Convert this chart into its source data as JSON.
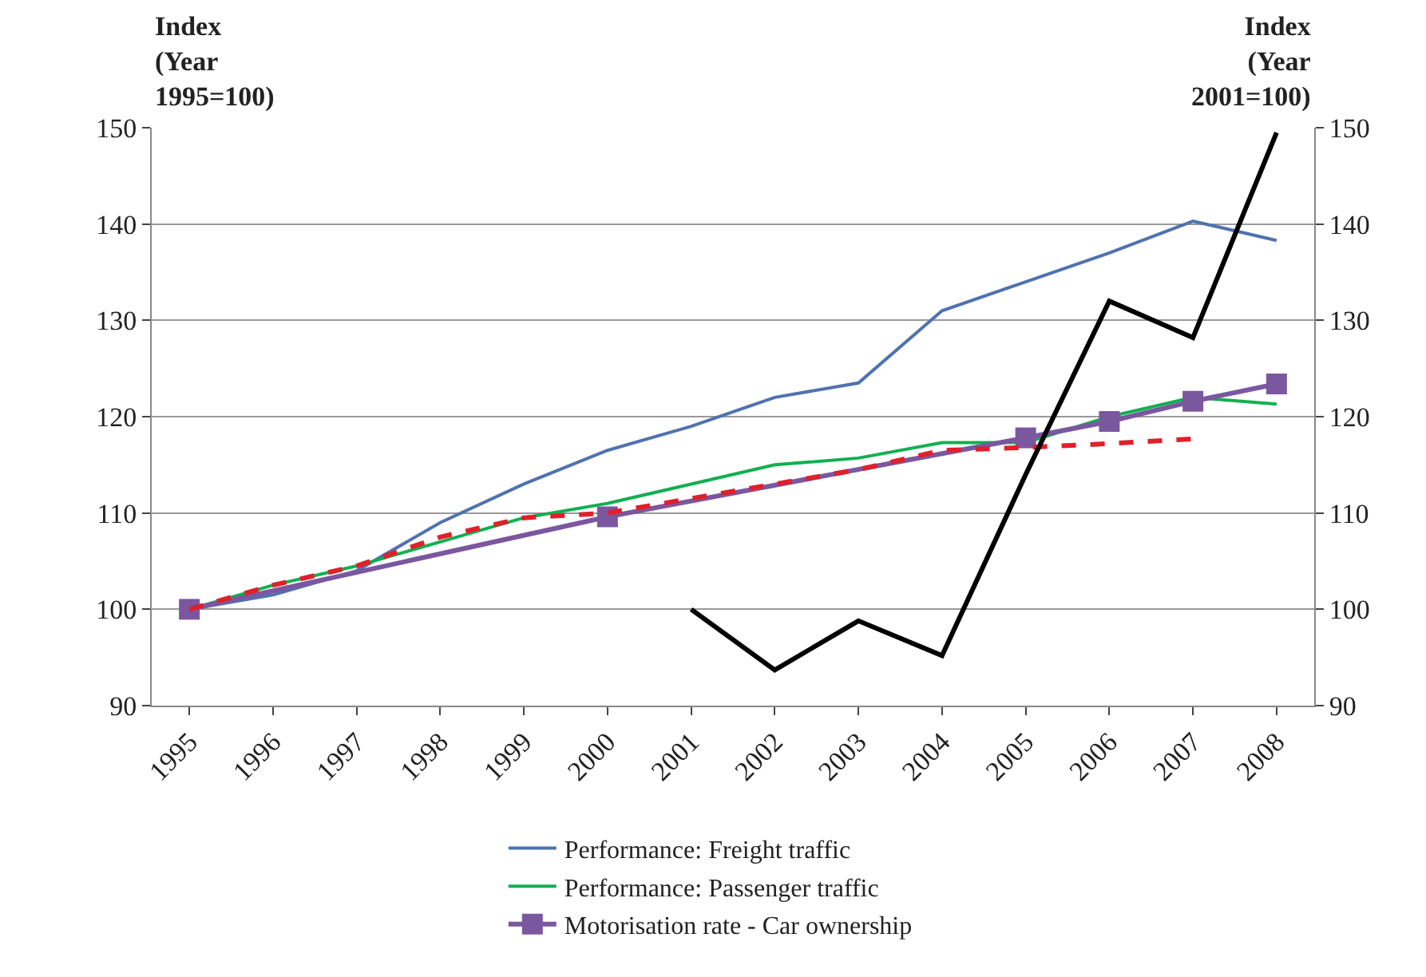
{
  "chart_data": {
    "type": "line",
    "ylabel": "Index\n(Year\n1995=100)",
    "y2label": "Index\n(Year\n2001=100)",
    "categories": [
      "1995",
      "1996",
      "1997",
      "1998",
      "1999",
      "2000",
      "2001",
      "2002",
      "2003",
      "2004",
      "2005",
      "2006",
      "2007",
      "2008"
    ],
    "series": [
      {
        "name": "Performance: Freight traffic",
        "color": "#4f72b0",
        "values": [
          100,
          101.5,
          104,
          109,
          113,
          116.5,
          119,
          122,
          123.5,
          131,
          134,
          137,
          140.3,
          138.3
        ]
      },
      {
        "name": "Performance: Passenger traffic",
        "color": "#10b050",
        "values": [
          100,
          102.5,
          104.5,
          107,
          109.5,
          111,
          113,
          115,
          115.7,
          117.3,
          117.3,
          120,
          122,
          121.3
        ]
      },
      {
        "name": "Motorisation rate - Car ownership",
        "color": "#7b57a0",
        "marker": "square",
        "values": [
          100,
          null,
          null,
          null,
          null,
          109.6,
          null,
          null,
          null,
          null,
          117.8,
          119.5,
          121.6,
          123.4
        ]
      },
      {
        "color": "#e0202a",
        "line_style": "dashed",
        "values": [
          100,
          102.5,
          104.5,
          107.5,
          109.5,
          110,
          111.5,
          113,
          114.5,
          116.5,
          116.8,
          117.2,
          117.7,
          null
        ]
      },
      {
        "color": "#000000",
        "axis": "y2",
        "values": [
          null,
          null,
          null,
          null,
          null,
          null,
          100,
          93.7,
          98.8,
          95.2,
          114,
          132,
          128.2,
          149.5
        ]
      }
    ],
    "ylim": [
      90,
      150
    ],
    "yticks": [
      90,
      100,
      110,
      120,
      130,
      140,
      150
    ],
    "y2lim": [
      90,
      150
    ],
    "y2ticks": [
      90,
      100,
      110,
      120,
      130,
      140,
      150
    ],
    "grid": "y",
    "legend": "bottom"
  }
}
